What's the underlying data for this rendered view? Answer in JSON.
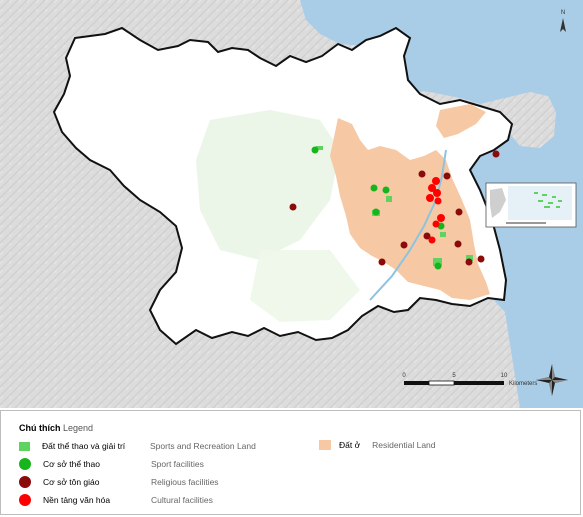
{
  "map": {
    "north_label": "N",
    "scale": {
      "ticks": [
        "0",
        "5",
        "10"
      ],
      "unit": "Kilometers"
    }
  },
  "legend": {
    "title_vi": "Chú thích",
    "title_en": "Legend",
    "items": [
      {
        "vi": "Đất thể thao và giải trí",
        "en": "Sports and Recreation Land",
        "symbol": "square",
        "color": "#5fd35f"
      },
      {
        "vi": "Cơ sở thể thao",
        "en": "Sport facilities",
        "symbol": "circle",
        "color": "#17b51c"
      },
      {
        "vi": "Cơ sở tôn giáo",
        "en": "Religious facilities",
        "symbol": "circle",
        "color": "#8b0a0a"
      },
      {
        "vi": "Nền tảng văn hóa",
        "en": "Cultural facilities",
        "symbol": "circle",
        "color": "#ff0000"
      }
    ],
    "residential": {
      "vi": "Đất ở",
      "en": "Residential Land",
      "color": "#f6c9a4"
    }
  },
  "colors": {
    "sea": "#a9cde6",
    "boundary": "#111111",
    "terrain": "#dcdcdc",
    "sport_point": "#17b51c",
    "religious_point": "#8b0a0a",
    "cultural_point": "#ff0000"
  }
}
